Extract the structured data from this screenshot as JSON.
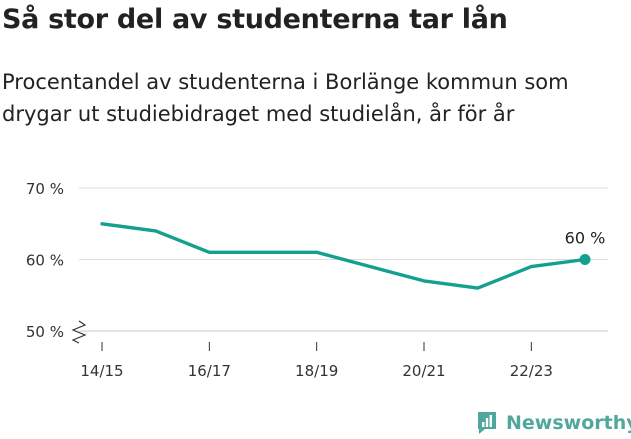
{
  "header": {
    "title": "Så stor del av studenterna tar lån",
    "subtitle": "Procentandel av studenterna i Borlänge kommun som drygar ut studiebidraget med studielån, år för år"
  },
  "chart_data": {
    "type": "line",
    "title": "Så stor del av studenterna tar lån",
    "subtitle": "Procentandel av studenterna i Borlänge kommun som drygar ut studiebidraget med studielån, år för år",
    "xlabel": "",
    "ylabel": "",
    "x": [
      "14/15",
      "15/16",
      "16/17",
      "17/18",
      "18/19",
      "19/20",
      "20/21",
      "21/22",
      "22/23",
      "23/24"
    ],
    "x_tick_labels": [
      "14/15",
      "16/17",
      "18/19",
      "20/21",
      "22/23"
    ],
    "y_ticks": [
      50,
      60,
      70
    ],
    "y_tick_labels": [
      "50 %",
      "60 %",
      "70 %"
    ],
    "ylim": [
      50,
      70
    ],
    "axis_break": "y",
    "grid": true,
    "legend": "none",
    "series": [
      {
        "values": [
          65,
          64,
          61,
          61,
          61,
          59,
          57,
          56,
          59,
          60
        ],
        "color": "#13a08f"
      }
    ],
    "annotations": [
      {
        "x": "23/24",
        "y": 60,
        "text": "60 %"
      }
    ]
  },
  "brand": {
    "name": "Newsworthy",
    "color": "#4fa89b",
    "icon": "newsworthy-logo-icon"
  }
}
